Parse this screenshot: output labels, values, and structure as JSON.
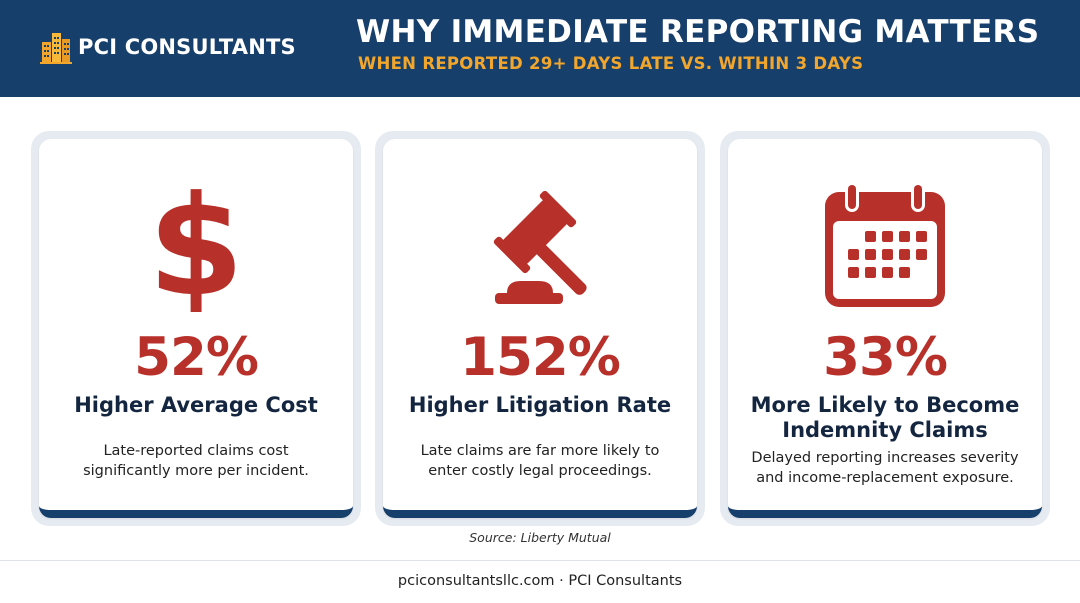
{
  "header": {
    "brand": "PCI CONSULTANTS",
    "title": "WHY IMMEDIATE REPORTING MATTERS",
    "subtitle": "WHEN REPORTED 29+ DAYS LATE VS. WITHIN 3 DAYS"
  },
  "cards": [
    {
      "icon": "dollar-icon",
      "stat": "52%",
      "label": "Higher Average Cost",
      "desc_line1": "Late-reported claims cost",
      "desc_line2": "significantly more per incident."
    },
    {
      "icon": "gavel-icon",
      "stat": "152%",
      "label": "Higher Litigation Rate",
      "desc_line1": "Late claims are far more likely to",
      "desc_line2": "enter costly legal proceedings."
    },
    {
      "icon": "calendar-icon",
      "stat": "33%",
      "label_line1": "More Likely to Become",
      "label_line2": "Indemnity Claims",
      "desc_line1": "Delayed reporting increases severity",
      "desc_line2": "and income-replacement exposure."
    }
  ],
  "source": "Source: Liberty Mutual",
  "footer": "pciconsultantsllc.com · PCI Consultants",
  "colors": {
    "header_bg": "#173f6b",
    "accent_orange": "#f2a72c",
    "stat_red": "#b8302a",
    "text_navy": "#13253f"
  }
}
